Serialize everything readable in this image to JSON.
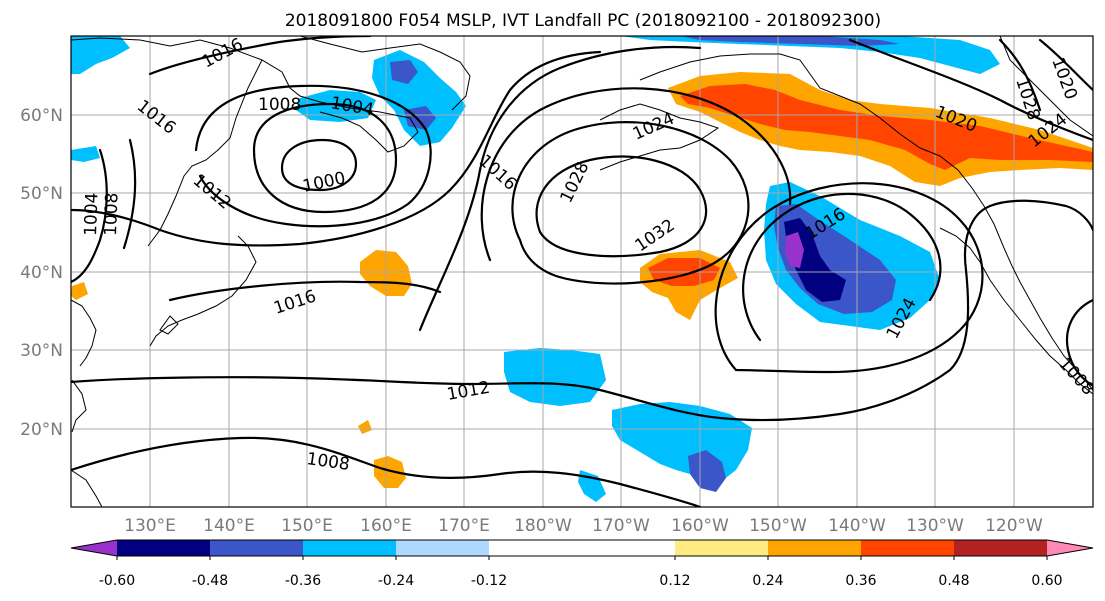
{
  "title": "2018091800 F054 MSLP, IVT Landfall PC (2018092100 - 2018092300)",
  "lat_labels": [
    "60°N",
    "50°N",
    "40°N",
    "30°N",
    "20°N"
  ],
  "lon_labels": [
    "130°E",
    "140°E",
    "150°E",
    "160°E",
    "170°E",
    "180°W",
    "170°W",
    "160°W",
    "150°W",
    "140°W",
    "130°W",
    "120°W"
  ],
  "isobar_labels": [
    "1016",
    "1016",
    "1008",
    "1004",
    "1000",
    "1012",
    "1004",
    "1008",
    "1016",
    "1016",
    "1024",
    "1028",
    "1032",
    "1016",
    "1024",
    "1012",
    "1008",
    "1020",
    "1028",
    "1020",
    "1024",
    "1008"
  ],
  "colorbar": {
    "colors": [
      "#9932CC",
      "#000080",
      "#3A56C8",
      "#00BFFF",
      "#ADD8FF",
      "#FFFFFF",
      "#FFFFFF",
      "#FFEB80",
      "#FFA500",
      "#FF4500",
      "#B22222",
      "#FF88B4"
    ],
    "tick_labels": [
      "-0.60",
      "-0.48",
      "-0.36",
      "-0.24",
      "-0.12",
      "0.12",
      "0.24",
      "0.36",
      "0.48",
      "0.60"
    ],
    "bounds": [
      -0.6,
      -0.48,
      -0.36,
      -0.24,
      -0.12,
      0.0,
      0.12,
      0.24,
      0.36,
      0.48,
      0.6
    ]
  }
}
